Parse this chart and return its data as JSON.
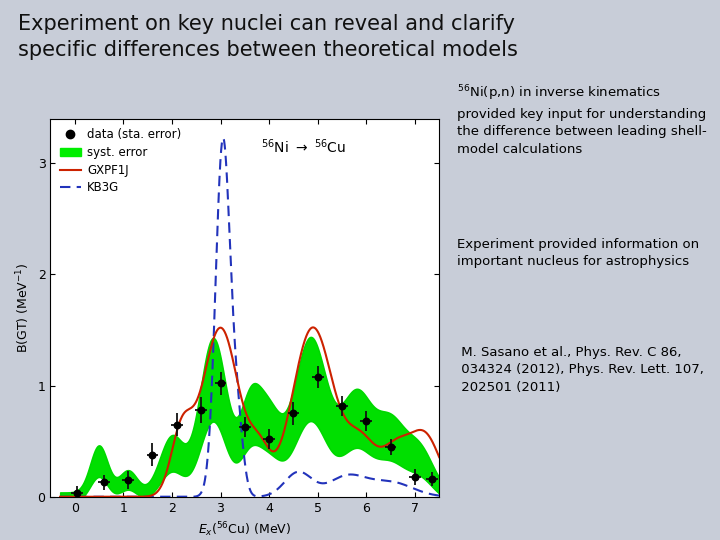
{
  "title_line1": "Experiment on key nuclei can reveal and clarify",
  "title_line2": "specific differences between theoretical models",
  "title_fontsize": 15,
  "title_color": "#111111",
  "bg_color": "#c8cdd8",
  "plot_bg_color": "#ffffff",
  "green_color": "#00ee00",
  "green_dark_color": "#007700",
  "red_line_color": "#cc2200",
  "blue_dash_color": "#2233bb",
  "data_color": "#111111",
  "xlim": [
    -0.5,
    7.5
  ],
  "ylim": [
    0,
    3.4
  ],
  "xticks": [
    0,
    1,
    2,
    3,
    4,
    5,
    6,
    7
  ],
  "yticks": [
    0,
    1,
    2,
    3
  ],
  "legend_entries": [
    "data (sta. error)",
    "syst. error",
    "GXPF1J",
    "KB3G"
  ],
  "text1_superscript": "56",
  "text1_line1": "Ni(p,n) in inverse kinematics",
  "text1_line2": "provided key input for understanding",
  "text1_line3": "the difference between leading shell-",
  "text1_line4": "model calculations",
  "text2_line1": "Experiment provided information on",
  "text2_line2": "important nucleus for astrophysics",
  "ref_line1": " M. Sasano et al., Phys. Rev. C 86,",
  "ref_line2": " 034324 (2012), Phys. Rev. Lett. 107,",
  "ref_line3": " 202501 (2011)"
}
